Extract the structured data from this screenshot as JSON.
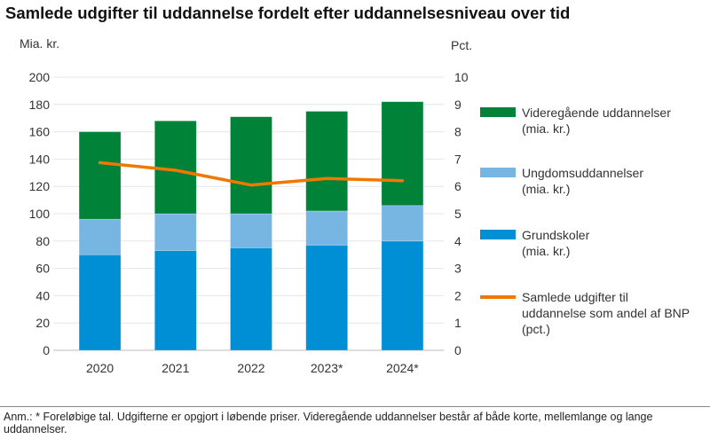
{
  "chart_data": {
    "type": "bar",
    "stacked": true,
    "title": "Samlede udgifter til uddannelse fordelt efter uddannelsesniveau over tid",
    "ylabel": "Mia. kr.",
    "y2label": "Pct.",
    "ylim": [
      0,
      200
    ],
    "y2lim": [
      0,
      10
    ],
    "yticks": [
      "0",
      "20",
      "40",
      "60",
      "80",
      "100",
      "120",
      "140",
      "160",
      "180",
      "200"
    ],
    "y2ticks": [
      "0",
      "1",
      "2",
      "3",
      "4",
      "5",
      "6",
      "7",
      "8",
      "9",
      "10"
    ],
    "categories": [
      "2020",
      "2021",
      "2022",
      "2023*",
      "2024*"
    ],
    "grid": true,
    "legend_placement": "right",
    "series": [
      {
        "name": "Grundskoler\n(mia. kr.)",
        "type": "bar",
        "color": "#008fd5",
        "values": [
          70,
          73,
          75,
          77,
          80
        ]
      },
      {
        "name": "Ungdomsuddannelser\n(mia. kr.)",
        "type": "bar",
        "color": "#77b5e3",
        "values": [
          26,
          27,
          25,
          25,
          26
        ]
      },
      {
        "name": "Videregående uddannelser\n(mia. kr.)",
        "type": "bar",
        "color": "#008238",
        "values": [
          64,
          68,
          71,
          73,
          76
        ]
      },
      {
        "name": "Samlede udgifter til\nuddannelse som andel af BNP\n(pct.)",
        "type": "line",
        "axis": "right",
        "color": "#f07800",
        "values": [
          6.87,
          6.59,
          6.05,
          6.29,
          6.21
        ]
      }
    ]
  },
  "note": "Anm.: * Foreløbige tal. Udgifterne er opgjort i løbende priser. Videregående uddannelser består af både korte, mellemlange og lange uddannelser."
}
